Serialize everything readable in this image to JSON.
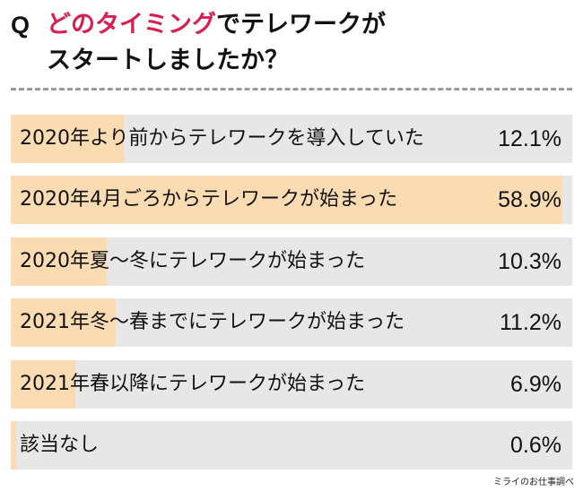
{
  "header": {
    "q_mark": "Q",
    "title_accent": "どのタイミング",
    "title_rest_1": "でテレワークが",
    "title_line_2": "スタートしましたか？"
  },
  "chart_data": {
    "type": "bar",
    "orientation": "horizontal",
    "categories": [
      "2020年より前からテレワークを導入していた",
      "2020年4月ごろからテレワークが始まった",
      "2020年夏〜冬にテレワークが始まった",
      "2021年冬〜春までにテレワークが始まった",
      "2021年春以降にテレワークが始まった",
      "該当なし"
    ],
    "values": [
      12.1,
      58.9,
      10.3,
      11.2,
      6.9,
      0.6
    ],
    "value_labels": [
      "12.1%",
      "58.9%",
      "10.3%",
      "11.2%",
      "6.9%",
      "0.6%"
    ],
    "xlim": [
      0,
      60
    ],
    "unit": "%",
    "colors": {
      "fill": "#fbdcb2",
      "track": "#e7e7e7",
      "accent": "#d6204f"
    }
  },
  "footer": {
    "source": "ミライのお仕事調べ"
  }
}
